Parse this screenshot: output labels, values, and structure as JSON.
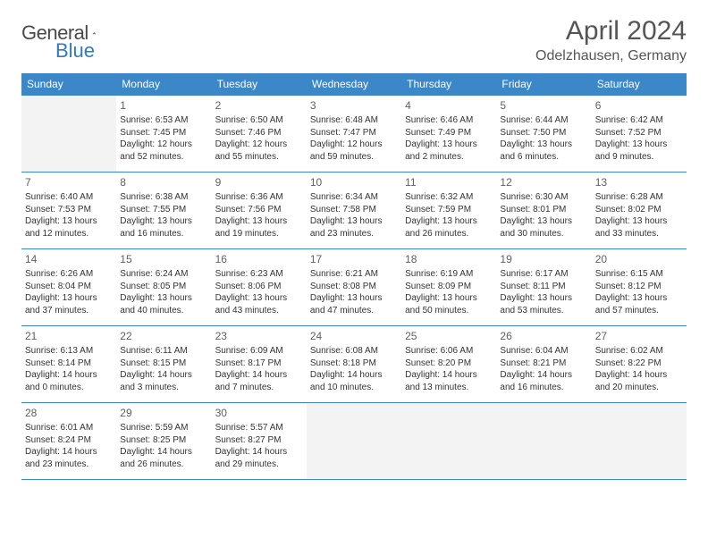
{
  "brand": {
    "word1": "General",
    "word2": "Blue"
  },
  "title": "April 2024",
  "location": "Odelzhausen, Germany",
  "colors": {
    "header_bg": "#3b87c8",
    "header_text": "#ffffff",
    "row_border": "#3b87c8",
    "empty_bg": "#f3f3f3",
    "body_text": "#333333",
    "title_text": "#555555",
    "logo_gray": "#4a4a4a",
    "logo_blue": "#2f7bbd"
  },
  "typography": {
    "month_fontsize": 30,
    "location_fontsize": 16,
    "dayheader_fontsize": 12,
    "daynum_fontsize": 12,
    "cell_fontsize": 10
  },
  "day_headers": [
    "Sunday",
    "Monday",
    "Tuesday",
    "Wednesday",
    "Thursday",
    "Friday",
    "Saturday"
  ],
  "weeks": [
    [
      null,
      {
        "n": "1",
        "sr": "Sunrise: 6:53 AM",
        "ss": "Sunset: 7:45 PM",
        "d1": "Daylight: 12 hours",
        "d2": "and 52 minutes."
      },
      {
        "n": "2",
        "sr": "Sunrise: 6:50 AM",
        "ss": "Sunset: 7:46 PM",
        "d1": "Daylight: 12 hours",
        "d2": "and 55 minutes."
      },
      {
        "n": "3",
        "sr": "Sunrise: 6:48 AM",
        "ss": "Sunset: 7:47 PM",
        "d1": "Daylight: 12 hours",
        "d2": "and 59 minutes."
      },
      {
        "n": "4",
        "sr": "Sunrise: 6:46 AM",
        "ss": "Sunset: 7:49 PM",
        "d1": "Daylight: 13 hours",
        "d2": "and 2 minutes."
      },
      {
        "n": "5",
        "sr": "Sunrise: 6:44 AM",
        "ss": "Sunset: 7:50 PM",
        "d1": "Daylight: 13 hours",
        "d2": "and 6 minutes."
      },
      {
        "n": "6",
        "sr": "Sunrise: 6:42 AM",
        "ss": "Sunset: 7:52 PM",
        "d1": "Daylight: 13 hours",
        "d2": "and 9 minutes."
      }
    ],
    [
      {
        "n": "7",
        "sr": "Sunrise: 6:40 AM",
        "ss": "Sunset: 7:53 PM",
        "d1": "Daylight: 13 hours",
        "d2": "and 12 minutes."
      },
      {
        "n": "8",
        "sr": "Sunrise: 6:38 AM",
        "ss": "Sunset: 7:55 PM",
        "d1": "Daylight: 13 hours",
        "d2": "and 16 minutes."
      },
      {
        "n": "9",
        "sr": "Sunrise: 6:36 AM",
        "ss": "Sunset: 7:56 PM",
        "d1": "Daylight: 13 hours",
        "d2": "and 19 minutes."
      },
      {
        "n": "10",
        "sr": "Sunrise: 6:34 AM",
        "ss": "Sunset: 7:58 PM",
        "d1": "Daylight: 13 hours",
        "d2": "and 23 minutes."
      },
      {
        "n": "11",
        "sr": "Sunrise: 6:32 AM",
        "ss": "Sunset: 7:59 PM",
        "d1": "Daylight: 13 hours",
        "d2": "and 26 minutes."
      },
      {
        "n": "12",
        "sr": "Sunrise: 6:30 AM",
        "ss": "Sunset: 8:01 PM",
        "d1": "Daylight: 13 hours",
        "d2": "and 30 minutes."
      },
      {
        "n": "13",
        "sr": "Sunrise: 6:28 AM",
        "ss": "Sunset: 8:02 PM",
        "d1": "Daylight: 13 hours",
        "d2": "and 33 minutes."
      }
    ],
    [
      {
        "n": "14",
        "sr": "Sunrise: 6:26 AM",
        "ss": "Sunset: 8:04 PM",
        "d1": "Daylight: 13 hours",
        "d2": "and 37 minutes."
      },
      {
        "n": "15",
        "sr": "Sunrise: 6:24 AM",
        "ss": "Sunset: 8:05 PM",
        "d1": "Daylight: 13 hours",
        "d2": "and 40 minutes."
      },
      {
        "n": "16",
        "sr": "Sunrise: 6:23 AM",
        "ss": "Sunset: 8:06 PM",
        "d1": "Daylight: 13 hours",
        "d2": "and 43 minutes."
      },
      {
        "n": "17",
        "sr": "Sunrise: 6:21 AM",
        "ss": "Sunset: 8:08 PM",
        "d1": "Daylight: 13 hours",
        "d2": "and 47 minutes."
      },
      {
        "n": "18",
        "sr": "Sunrise: 6:19 AM",
        "ss": "Sunset: 8:09 PM",
        "d1": "Daylight: 13 hours",
        "d2": "and 50 minutes."
      },
      {
        "n": "19",
        "sr": "Sunrise: 6:17 AM",
        "ss": "Sunset: 8:11 PM",
        "d1": "Daylight: 13 hours",
        "d2": "and 53 minutes."
      },
      {
        "n": "20",
        "sr": "Sunrise: 6:15 AM",
        "ss": "Sunset: 8:12 PM",
        "d1": "Daylight: 13 hours",
        "d2": "and 57 minutes."
      }
    ],
    [
      {
        "n": "21",
        "sr": "Sunrise: 6:13 AM",
        "ss": "Sunset: 8:14 PM",
        "d1": "Daylight: 14 hours",
        "d2": "and 0 minutes."
      },
      {
        "n": "22",
        "sr": "Sunrise: 6:11 AM",
        "ss": "Sunset: 8:15 PM",
        "d1": "Daylight: 14 hours",
        "d2": "and 3 minutes."
      },
      {
        "n": "23",
        "sr": "Sunrise: 6:09 AM",
        "ss": "Sunset: 8:17 PM",
        "d1": "Daylight: 14 hours",
        "d2": "and 7 minutes."
      },
      {
        "n": "24",
        "sr": "Sunrise: 6:08 AM",
        "ss": "Sunset: 8:18 PM",
        "d1": "Daylight: 14 hours",
        "d2": "and 10 minutes."
      },
      {
        "n": "25",
        "sr": "Sunrise: 6:06 AM",
        "ss": "Sunset: 8:20 PM",
        "d1": "Daylight: 14 hours",
        "d2": "and 13 minutes."
      },
      {
        "n": "26",
        "sr": "Sunrise: 6:04 AM",
        "ss": "Sunset: 8:21 PM",
        "d1": "Daylight: 14 hours",
        "d2": "and 16 minutes."
      },
      {
        "n": "27",
        "sr": "Sunrise: 6:02 AM",
        "ss": "Sunset: 8:22 PM",
        "d1": "Daylight: 14 hours",
        "d2": "and 20 minutes."
      }
    ],
    [
      {
        "n": "28",
        "sr": "Sunrise: 6:01 AM",
        "ss": "Sunset: 8:24 PM",
        "d1": "Daylight: 14 hours",
        "d2": "and 23 minutes."
      },
      {
        "n": "29",
        "sr": "Sunrise: 5:59 AM",
        "ss": "Sunset: 8:25 PM",
        "d1": "Daylight: 14 hours",
        "d2": "and 26 minutes."
      },
      {
        "n": "30",
        "sr": "Sunrise: 5:57 AM",
        "ss": "Sunset: 8:27 PM",
        "d1": "Daylight: 14 hours",
        "d2": "and 29 minutes."
      },
      null,
      null,
      null,
      null
    ]
  ]
}
